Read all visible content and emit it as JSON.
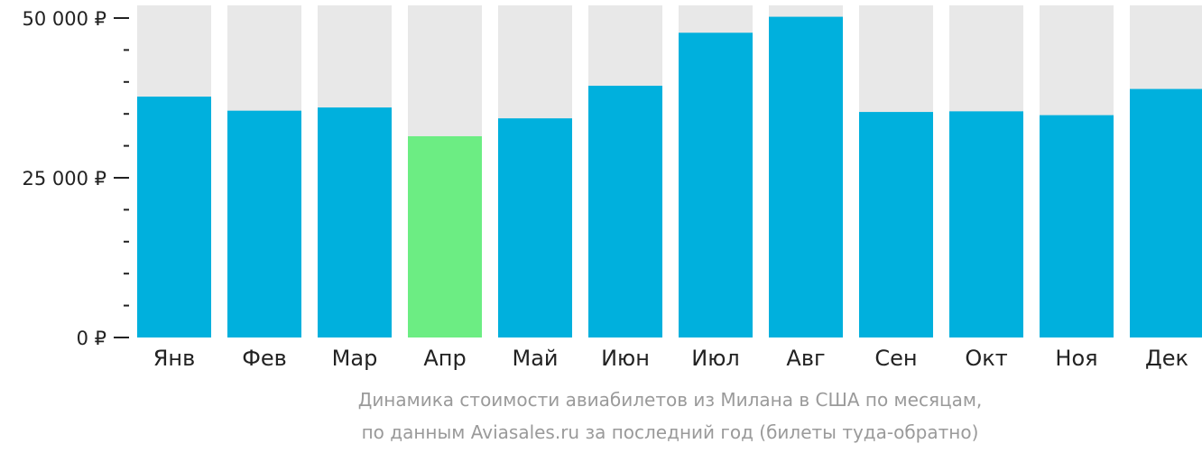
{
  "chart_data": {
    "type": "bar",
    "categories": [
      "Янв",
      "Фев",
      "Мар",
      "Апр",
      "Май",
      "Июн",
      "Июл",
      "Авг",
      "Сен",
      "Окт",
      "Ноя",
      "Дек"
    ],
    "values": [
      37700,
      35500,
      36000,
      31500,
      34300,
      39400,
      47700,
      50200,
      35300,
      35400,
      34800,
      38900
    ],
    "ylim": [
      0,
      52000
    ],
    "yticks": [
      0,
      25000,
      50000
    ],
    "ytick_labels": [
      "0 ₽",
      "25 000 ₽",
      "50 000 ₽"
    ],
    "minor_yticks": [
      5000,
      10000,
      15000,
      20000,
      30000,
      35000,
      40000,
      45000
    ],
    "highlight_index": 3,
    "colors": {
      "bar": "#00b0dd",
      "highlight": "#6ced83",
      "background": "#e8e8e8",
      "axis": "#222222"
    },
    "caption_line1": "Динамика стоимости авиабилетов из Милана в США по месяцам,",
    "caption_line2": "по данным Aviasales.ru за последний год (билеты туда-обратно)"
  }
}
